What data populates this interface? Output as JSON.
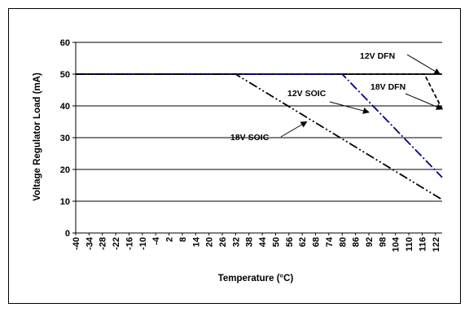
{
  "chart_data": {
    "type": "line",
    "xlabel": "Temperature (°C)",
    "ylabel": "Voltage Regulator Load (mA)",
    "xlim": [
      -40,
      125
    ],
    "ylim": [
      0,
      60
    ],
    "y_ticks": [
      0,
      10,
      20,
      30,
      40,
      50,
      60
    ],
    "x_ticks": [
      -40,
      -34,
      -28,
      -22,
      -16,
      -10,
      -4,
      2,
      8,
      14,
      20,
      26,
      32,
      38,
      44,
      50,
      56,
      62,
      68,
      74,
      80,
      86,
      92,
      98,
      104,
      110,
      116,
      122
    ],
    "grid": "horizontal",
    "series": [
      {
        "name": "12V DFN",
        "color": "#000000",
        "dash": "solid",
        "x": [
          -40,
          125
        ],
        "y": [
          50,
          50
        ]
      },
      {
        "name": "18V DFN",
        "color": "#000000",
        "dash": "dashed",
        "x": [
          -40,
          117,
          125
        ],
        "y": [
          50,
          50,
          39
        ]
      },
      {
        "name": "12V SOIC",
        "color": "#00008B",
        "dash": "dash-dot",
        "x": [
          -40,
          80,
          125
        ],
        "y": [
          50,
          50,
          17.5
        ]
      },
      {
        "name": "18V SOIC",
        "color": "#000000",
        "dash": "dash-dot-dot",
        "x": [
          -40,
          32,
          125
        ],
        "y": [
          50,
          50,
          10.5
        ]
      }
    ],
    "annotations": [
      {
        "text": "12V DFN",
        "points_to": [
          124,
          50
        ]
      },
      {
        "text": "18V DFN",
        "points_to": [
          125,
          39
        ]
      },
      {
        "text": "12V SOIC",
        "points_to": [
          92,
          38
        ]
      },
      {
        "text": "18V SOIC",
        "points_to": [
          64,
          35
        ]
      }
    ]
  }
}
